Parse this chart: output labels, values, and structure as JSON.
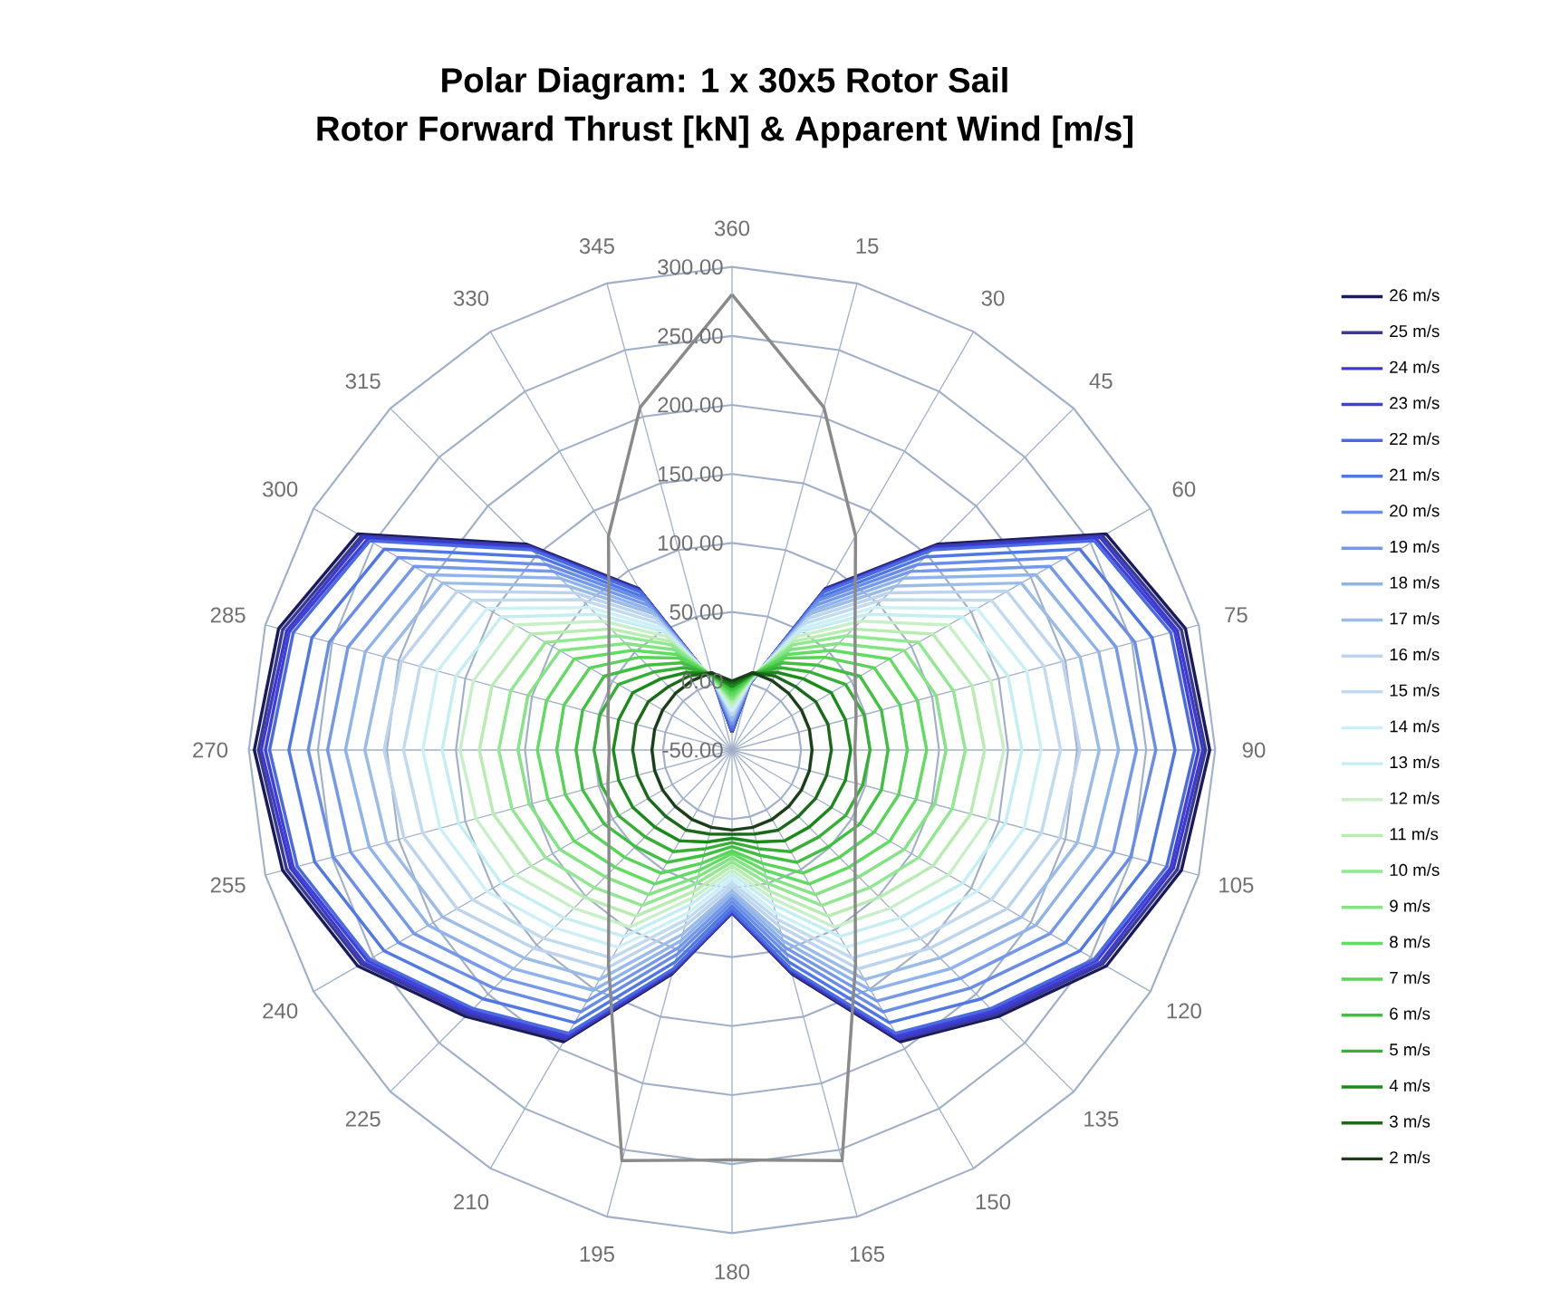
{
  "chart_data": {
    "type": "radar",
    "title": "Polar Diagram: 1 x 30x5 Rotor Sail",
    "subtitle": "Rotor Forward Thrust [kN] & Apparent Wind [m/s]",
    "categories": [
      "360",
      "15",
      "30",
      "45",
      "60",
      "75",
      "90",
      "105",
      "120",
      "135",
      "150",
      "165",
      "180",
      "195",
      "210",
      "225",
      "240",
      "255",
      "270",
      "285",
      "300",
      "315",
      "330",
      "345"
    ],
    "ylim": [
      -50,
      300
    ],
    "yticks": [
      {
        "value": -50,
        "label": "-50.00"
      },
      {
        "value": 0,
        "label": "0.00"
      },
      {
        "value": 50,
        "label": "50.00"
      },
      {
        "value": 100,
        "label": "100.00"
      },
      {
        "value": 150,
        "label": "150.00"
      },
      {
        "value": 200,
        "label": "200.00"
      },
      {
        "value": 250,
        "label": "250.00"
      },
      {
        "value": 300,
        "label": "300.00"
      }
    ],
    "grid": true,
    "legend": "right",
    "marker": "none",
    "line_style": "solid",
    "series": [
      {
        "name": "26 m/s",
        "color": "#1a1a5e",
        "values": [
          -37,
          0,
          85,
          161,
          263,
          290,
          296,
          287,
          263,
          223,
          194,
          118,
          68,
          118,
          194,
          223,
          263,
          287,
          296,
          290,
          263,
          161,
          85,
          0
        ]
      },
      {
        "name": "25 m/s",
        "color": "#3a3a8f",
        "values": [
          -37,
          0,
          84,
          159,
          260,
          287,
          293,
          284,
          260,
          221,
          192,
          117,
          68,
          117,
          192,
          221,
          260,
          284,
          293,
          287,
          260,
          159,
          84,
          0
        ]
      },
      {
        "name": "24 m/s",
        "color": "#3a3acc",
        "values": [
          -37,
          0,
          83,
          158,
          258,
          284,
          291,
          281,
          258,
          219,
          191,
          116,
          67,
          116,
          191,
          219,
          258,
          281,
          291,
          284,
          258,
          158,
          83,
          0
        ]
      },
      {
        "name": "23 m/s",
        "color": "#4040d8",
        "values": [
          -36,
          0,
          83,
          156,
          255,
          282,
          288,
          279,
          255,
          217,
          189,
          115,
          67,
          115,
          189,
          217,
          255,
          279,
          288,
          282,
          255,
          156,
          83,
          0
        ]
      },
      {
        "name": "22 m/s",
        "color": "#4a6ae0",
        "values": [
          -36,
          0,
          82,
          155,
          253,
          279,
          285,
          276,
          253,
          215,
          187,
          114,
          66,
          114,
          187,
          215,
          253,
          276,
          285,
          279,
          253,
          155,
          82,
          0
        ]
      },
      {
        "name": "21 m/s",
        "color": "#5078e2",
        "values": [
          -34,
          0,
          78,
          148,
          241,
          265,
          271,
          263,
          241,
          205,
          178,
          109,
          63,
          109,
          178,
          205,
          241,
          263,
          271,
          265,
          241,
          148,
          78,
          0
        ]
      },
      {
        "name": "20 m/s",
        "color": "#6a8ee6",
        "values": [
          -32,
          1,
          75,
          140,
          229,
          252,
          257,
          249,
          229,
          194,
          169,
          103,
          60,
          103,
          169,
          194,
          229,
          249,
          257,
          252,
          229,
          140,
          75,
          1
        ]
      },
      {
        "name": "19 m/s",
        "color": "#7498ea",
        "values": [
          -31,
          1,
          71,
          133,
          216,
          238,
          243,
          236,
          216,
          184,
          160,
          98,
          57,
          98,
          160,
          184,
          216,
          236,
          243,
          238,
          216,
          133,
          71,
          1
        ]
      },
      {
        "name": "18 m/s",
        "color": "#8fb4ea",
        "values": [
          -29,
          2,
          67,
          126,
          204,
          225,
          230,
          222,
          204,
          174,
          151,
          93,
          54,
          93,
          151,
          174,
          204,
          222,
          230,
          225,
          204,
          126,
          67,
          2
        ]
      },
      {
        "name": "17 m/s",
        "color": "#9cbce8",
        "values": [
          -27,
          2,
          64,
          118,
          192,
          211,
          216,
          209,
          192,
          163,
          142,
          88,
          52,
          88,
          142,
          163,
          192,
          209,
          216,
          211,
          192,
          118,
          64,
          2
        ]
      },
      {
        "name": "16 m/s",
        "color": "#bcd4ee",
        "values": [
          -25,
          2,
          60,
          111,
          180,
          198,
          202,
          196,
          180,
          153,
          133,
          82,
          49,
          82,
          133,
          153,
          180,
          196,
          202,
          198,
          180,
          111,
          60,
          2
        ]
      },
      {
        "name": "15 m/s",
        "color": "#c0daf0",
        "values": [
          -23,
          3,
          56,
          104,
          167,
          184,
          188,
          182,
          167,
          143,
          124,
          77,
          46,
          77,
          124,
          143,
          167,
          182,
          188,
          184,
          167,
          104,
          56,
          3
        ]
      },
      {
        "name": "14 m/s",
        "color": "#ccf0f5",
        "values": [
          -22,
          3,
          52,
          96,
          155,
          171,
          174,
          169,
          155,
          132,
          115,
          72,
          43,
          72,
          115,
          132,
          155,
          169,
          174,
          171,
          155,
          96,
          52,
          3
        ]
      },
      {
        "name": "13 m/s",
        "color": "#c4eef2",
        "values": [
          -20,
          4,
          49,
          89,
          143,
          157,
          160,
          155,
          143,
          122,
          106,
          66,
          40,
          66,
          106,
          122,
          143,
          155,
          160,
          157,
          143,
          89,
          49,
          4
        ]
      },
      {
        "name": "12 m/s",
        "color": "#c8f0c8",
        "values": [
          -18,
          4,
          45,
          82,
          131,
          144,
          147,
          142,
          131,
          112,
          98,
          61,
          37,
          61,
          98,
          112,
          131,
          142,
          147,
          144,
          131,
          82,
          45,
          4
        ]
      },
      {
        "name": "11 m/s",
        "color": "#b8ecb0",
        "values": [
          -16,
          4,
          41,
          74,
          118,
          130,
          133,
          129,
          118,
          101,
          89,
          56,
          34,
          56,
          89,
          101,
          118,
          129,
          133,
          130,
          118,
          74,
          41,
          4
        ]
      },
      {
        "name": "10 m/s",
        "color": "#90e890",
        "values": [
          -14,
          5,
          38,
          67,
          106,
          116,
          119,
          115,
          106,
          91,
          80,
          50,
          31,
          50,
          80,
          91,
          106,
          115,
          119,
          116,
          106,
          67,
          38,
          5
        ]
      },
      {
        "name": "9 m/s",
        "color": "#84e484",
        "values": [
          -13,
          5,
          34,
          59,
          94,
          103,
          105,
          102,
          94,
          80,
          71,
          45,
          28,
          45,
          71,
          80,
          94,
          102,
          105,
          103,
          94,
          59,
          34,
          5
        ]
      },
      {
        "name": "8 m/s",
        "color": "#60dd60",
        "values": [
          -11,
          6,
          30,
          52,
          82,
          89,
          91,
          88,
          82,
          70,
          62,
          40,
          25,
          40,
          62,
          70,
          82,
          88,
          91,
          89,
          82,
          52,
          30,
          6
        ]
      },
      {
        "name": "7 m/s",
        "color": "#58d458",
        "values": [
          -9,
          6,
          27,
          45,
          69,
          76,
          77,
          75,
          69,
          60,
          53,
          35,
          23,
          35,
          53,
          60,
          69,
          75,
          77,
          76,
          69,
          45,
          27,
          6
        ]
      },
      {
        "name": "6 m/s",
        "color": "#40c040",
        "values": [
          -7,
          6,
          23,
          37,
          57,
          62,
          63,
          62,
          57,
          49,
          44,
          29,
          20,
          29,
          44,
          49,
          57,
          62,
          63,
          62,
          57,
          37,
          23,
          6
        ]
      },
      {
        "name": "5 m/s",
        "color": "#38b038",
        "values": [
          -5,
          7,
          19,
          30,
          45,
          49,
          50,
          48,
          45,
          39,
          35,
          24,
          17,
          24,
          35,
          39,
          45,
          48,
          50,
          49,
          45,
          30,
          19,
          7
        ]
      },
      {
        "name": "4 m/s",
        "color": "#1a8a1a",
        "values": [
          -4,
          7,
          15,
          23,
          33,
          35,
          36,
          35,
          33,
          29,
          26,
          19,
          14,
          19,
          26,
          29,
          33,
          35,
          36,
          35,
          33,
          23,
          15,
          7
        ]
      },
      {
        "name": "3 m/s",
        "color": "#1a6a1a",
        "values": [
          -2,
          8,
          12,
          15,
          20,
          22,
          22,
          21,
          20,
          18,
          17,
          13,
          11,
          13,
          17,
          18,
          20,
          21,
          22,
          22,
          20,
          15,
          12,
          8
        ]
      },
      {
        "name": "2 m/s",
        "color": "#1a401a",
        "values": [
          0,
          8,
          8,
          8,
          8,
          8,
          8,
          8,
          8,
          8,
          8,
          8,
          8,
          8,
          8,
          8,
          8,
          8,
          8,
          8,
          8,
          8,
          8,
          8
        ]
      },
      {
        "color": "#8a8a8a",
        "values": [
          280,
          207,
          129,
          76,
          53,
          43,
          39,
          43,
          53,
          76,
          129,
          258,
          247,
          258,
          129,
          76,
          53,
          43,
          39,
          43,
          53,
          76,
          129,
          207
        ]
      }
    ]
  }
}
